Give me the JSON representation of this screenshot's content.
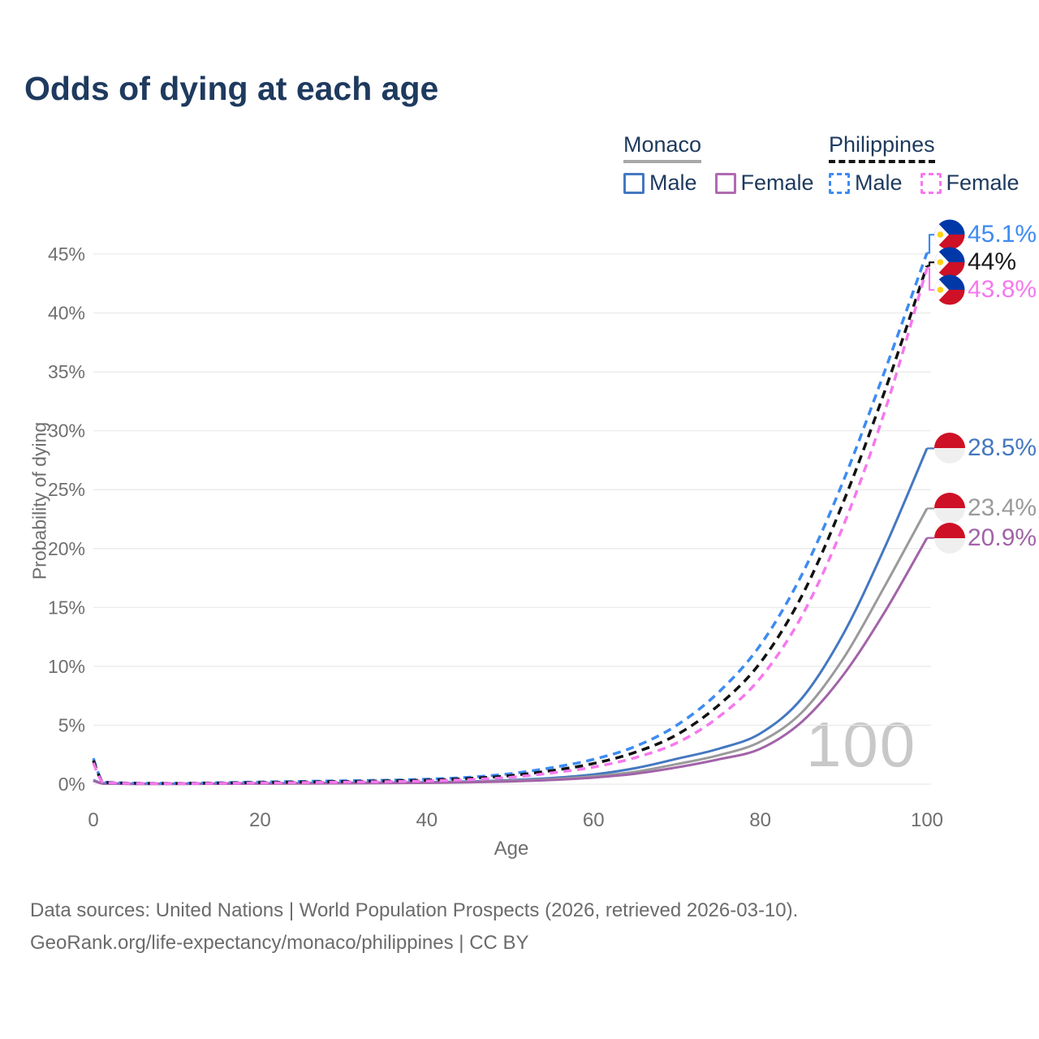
{
  "title": "Odds of dying at each age",
  "watermark": "100",
  "legend": {
    "groups": [
      {
        "label": "Monaco",
        "style": "solid",
        "underline_color": "#a8a8a8",
        "items": [
          {
            "label": "Male",
            "color": "#4478c0"
          },
          {
            "label": "Female",
            "color": "#b06ab0"
          }
        ]
      },
      {
        "label": "Philippines",
        "style": "dashed",
        "underline_color": "#141414",
        "items": [
          {
            "label": "Male",
            "color": "#3d8bf2"
          },
          {
            "label": "Female",
            "color": "#f678ee"
          }
        ]
      }
    ]
  },
  "footer": {
    "line1": "Data sources: United Nations | World Population Prospects (2026, retrieved 2026-03-10).",
    "line2": "GeoRank.org/life-expectancy/monaco/philippines | CC BY"
  },
  "chart_data": {
    "type": "line",
    "title": "Odds of dying at each age",
    "xlabel": "Age",
    "ylabel": "Probability of dying",
    "unit": "percent",
    "xlim": [
      0,
      100
    ],
    "ylim": [
      0,
      47
    ],
    "xticks": [
      0,
      20,
      40,
      60,
      80,
      100
    ],
    "yticks": [
      0,
      5,
      10,
      15,
      20,
      25,
      30,
      35,
      40,
      45
    ],
    "grid": "horizontal",
    "legend_position": "top-right",
    "grid_color": "#e9e9e9",
    "tick_color": "#6f6f6f",
    "x": [
      0,
      1,
      2,
      5,
      10,
      15,
      20,
      25,
      30,
      35,
      40,
      45,
      50,
      55,
      60,
      65,
      70,
      75,
      80,
      85,
      90,
      95,
      100
    ],
    "series": [
      {
        "name": "Philippines Male",
        "country": "Philippines",
        "sex": "Male",
        "line_style": "dashed",
        "color": "#3d8bf2",
        "flag": "philippines",
        "end_value": 45.1,
        "end_label": "45.1%",
        "label_color": "#3d8bf2",
        "values": [
          2.2,
          0.3,
          0.15,
          0.08,
          0.07,
          0.12,
          0.18,
          0.23,
          0.28,
          0.33,
          0.42,
          0.58,
          0.88,
          1.4,
          2.1,
          3.2,
          5.0,
          7.8,
          11.8,
          17.8,
          25.8,
          35.2,
          45.1
        ]
      },
      {
        "name": "Philippines Both sexes",
        "country": "Philippines",
        "sex": "Both",
        "line_style": "dashed",
        "color": "#111111",
        "flag": "philippines",
        "end_value": 44.0,
        "end_label": "44%",
        "label_color": "#1a1a1a",
        "values": [
          2.0,
          0.27,
          0.13,
          0.07,
          0.06,
          0.09,
          0.14,
          0.18,
          0.22,
          0.27,
          0.34,
          0.48,
          0.72,
          1.15,
          1.75,
          2.7,
          4.2,
          6.7,
          10.3,
          16.0,
          24.0,
          33.5,
          44.0
        ]
      },
      {
        "name": "Philippines Female",
        "country": "Philippines",
        "sex": "Female",
        "line_style": "dashed",
        "color": "#f678ee",
        "flag": "philippines",
        "end_value": 43.8,
        "end_label": "43.8%",
        "label_color": "#f678ee",
        "values": [
          1.8,
          0.24,
          0.12,
          0.06,
          0.05,
          0.07,
          0.1,
          0.13,
          0.17,
          0.21,
          0.27,
          0.38,
          0.58,
          0.95,
          1.45,
          2.25,
          3.5,
          5.7,
          9.0,
          14.3,
          22.0,
          31.8,
          43.8
        ]
      },
      {
        "name": "Monaco Male",
        "country": "Monaco",
        "sex": "Male",
        "line_style": "solid",
        "color": "#4478c0",
        "flag": "monaco",
        "end_value": 28.5,
        "end_label": "28.5%",
        "label_color": "#4478c0",
        "values": [
          0.35,
          0.08,
          0.05,
          0.03,
          0.03,
          0.05,
          0.07,
          0.08,
          0.1,
          0.12,
          0.16,
          0.22,
          0.34,
          0.52,
          0.82,
          1.35,
          2.15,
          3.0,
          4.3,
          7.3,
          12.8,
          20.2,
          28.5
        ]
      },
      {
        "name": "Monaco Both sexes",
        "country": "Monaco",
        "sex": "Both",
        "line_style": "solid",
        "color": "#9a9a9a",
        "flag": "monaco",
        "end_value": 23.4,
        "end_label": "23.4%",
        "label_color": "#9a9a9a",
        "values": [
          0.3,
          0.07,
          0.04,
          0.03,
          0.03,
          0.04,
          0.05,
          0.07,
          0.08,
          0.1,
          0.13,
          0.18,
          0.28,
          0.42,
          0.66,
          1.05,
          1.7,
          2.45,
          3.6,
          6.1,
          10.7,
          16.9,
          23.4
        ]
      },
      {
        "name": "Monaco Female",
        "country": "Monaco",
        "sex": "Female",
        "line_style": "solid",
        "color": "#a263a8",
        "flag": "monaco",
        "end_value": 20.9,
        "end_label": "20.9%",
        "label_color": "#a263a8",
        "values": [
          0.28,
          0.06,
          0.04,
          0.02,
          0.02,
          0.03,
          0.04,
          0.05,
          0.07,
          0.08,
          0.11,
          0.15,
          0.23,
          0.35,
          0.55,
          0.88,
          1.42,
          2.1,
          3.0,
          5.3,
          9.3,
          14.7,
          20.9
        ]
      }
    ]
  }
}
